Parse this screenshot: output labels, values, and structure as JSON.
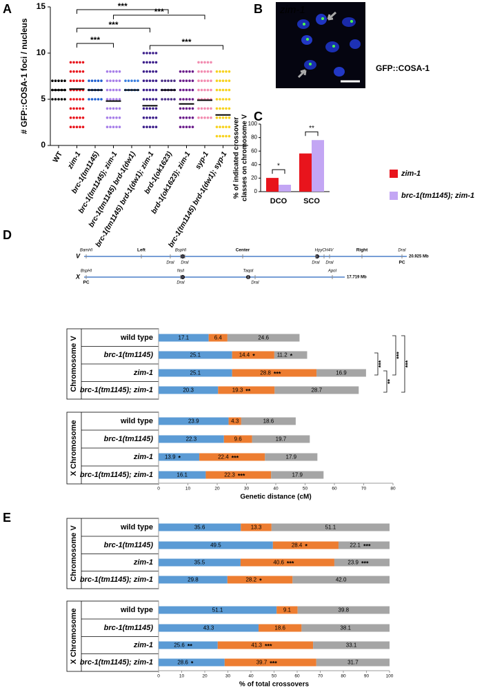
{
  "panels": [
    "A",
    "B",
    "C",
    "D",
    "E"
  ],
  "chart_data": [
    {
      "type": "dot",
      "ylabel": "# GFP::COSA-1 foci / nucleus",
      "categories": [
        "WT",
        "zim-1",
        "brc-1(tm1145)",
        "brc-1(tm1145); zim-1",
        "brc-1(tm1145) brd-1(dw1)",
        "brc-1(tm1145) brd-1(dw1); zim-1",
        "brd-1(ok1623)",
        "brd-1(ok1623); zim-1",
        "syp-1",
        "brc-1(tm1145) brd-1(dw1); syp-1"
      ],
      "values": [
        [
          5,
          6,
          7
        ],
        [
          2,
          3,
          4,
          5,
          6,
          7,
          8,
          9
        ],
        [
          5,
          6,
          7
        ],
        [
          2,
          3,
          4,
          5,
          6,
          7,
          8
        ],
        [
          6,
          7
        ],
        [
          2,
          3,
          4,
          5,
          6,
          7,
          8,
          9,
          10
        ],
        [
          5,
          6,
          7
        ],
        [
          2,
          3,
          4,
          5,
          6,
          7,
          8
        ],
        [
          3,
          4,
          5,
          6,
          7,
          8,
          9
        ],
        [
          1,
          2,
          3,
          4,
          5,
          6,
          7,
          8
        ]
      ],
      "means": [
        6,
        6.1,
        6,
        4.8,
        6,
        4.3,
        6,
        4.5,
        4.9,
        3.3
      ],
      "colors": [
        "#000000",
        "#e8141c",
        "#1f5fd0",
        "#a77ee8",
        "#3a7fe0",
        "#3b1d8a",
        "#4a2d86",
        "#6a1b8a",
        "#f28cb0",
        "#f7d21e"
      ],
      "ylim": [
        0,
        15
      ],
      "yticks": [
        0,
        5,
        10,
        15
      ],
      "brackets": [
        {
          "from": 1,
          "to": 6,
          "label": "***"
        },
        {
          "from": 3,
          "to": 8,
          "label": "***"
        },
        {
          "from": 1,
          "to": 5,
          "label": "***"
        },
        {
          "from": 1,
          "to": 3,
          "label": "***"
        },
        {
          "from": 5,
          "to": 9,
          "label": "***"
        }
      ]
    },
    {
      "type": "image",
      "title": "zim-1",
      "caption": "GFP::COSA-1"
    },
    {
      "type": "bar",
      "ylabel": [
        "% of indicated crossover",
        "classes on chromosome V"
      ],
      "categories": [
        "DCO",
        "SCO"
      ],
      "ylim": [
        0,
        100
      ],
      "yticks": [
        0,
        20,
        40,
        60,
        80,
        100
      ],
      "series": [
        {
          "name": "zim-1",
          "color": "#e8141c",
          "values": [
            20.3,
            56.5
          ]
        },
        {
          "name": "brc-1(tm1145); zim-1",
          "color": "#c3a6f4",
          "values": [
            10.2,
            76.3
          ]
        }
      ],
      "brackets": [
        {
          "index": 0,
          "label": "*"
        },
        {
          "index": 1,
          "label": "**"
        }
      ]
    },
    {
      "type": "map",
      "chromosomes": [
        {
          "name": "V",
          "size": "20.925 Mb",
          "labels": [
            "BamHI",
            "Left",
            "BspHI",
            "DraI",
            "DraI",
            "Center",
            "HpyCH4V",
            "DraI",
            "DraI",
            "Right",
            "DraI",
            "PC"
          ]
        },
        {
          "name": "X",
          "size": "17.719 Mb",
          "labels": [
            "BspHI",
            "PC",
            "NsiI",
            "DraI",
            "TaqαI",
            "DraI",
            "ApoI"
          ]
        }
      ]
    },
    {
      "type": "stacked_barh",
      "group": "Chromosome V",
      "categories": [
        "wild type",
        "brc-1(tm1145)",
        "zim-1",
        "brc-1(tm1145); zim-1"
      ],
      "series": [
        {
          "color": "#5b9bd5",
          "values": [
            17.1,
            25.1,
            25.1,
            20.3
          ]
        },
        {
          "color": "#ed7d31",
          "values": [
            6.4,
            14.4,
            28.8,
            19.3
          ]
        },
        {
          "color": "#a5a5a5",
          "values": [
            24.6,
            11.2,
            16.9,
            28.7
          ]
        }
      ],
      "stars": [
        {
          "series": 1,
          "index": 1,
          "label": "*"
        },
        {
          "series": 1,
          "index": 2,
          "label": "***"
        },
        {
          "series": 1,
          "index": 3,
          "label": "**"
        },
        {
          "series": 2,
          "index": 1,
          "label": "*"
        }
      ],
      "brackets": [
        {
          "from": 1,
          "to": 2,
          "label": "***"
        },
        {
          "from": 2,
          "to": 3,
          "label": "**"
        },
        {
          "from": 0,
          "to": 2,
          "label": "***"
        },
        {
          "from": 0,
          "to": 3,
          "label": "***"
        }
      ]
    },
    {
      "type": "stacked_barh",
      "group": "X Chromosome",
      "categories": [
        "wild type",
        "brc-1(tm1145)",
        "zim-1",
        "brc-1(tm1145); zim-1"
      ],
      "series": [
        {
          "color": "#5b9bd5",
          "values": [
            23.9,
            22.3,
            13.9,
            16.1
          ]
        },
        {
          "color": "#ed7d31",
          "values": [
            4.3,
            9.6,
            22.4,
            22.3
          ]
        },
        {
          "color": "#a5a5a5",
          "values": [
            18.6,
            19.7,
            17.9,
            17.9
          ]
        }
      ],
      "stars": [
        {
          "series": 0,
          "index": 2,
          "label": "*"
        },
        {
          "series": 1,
          "index": 2,
          "label": "***"
        },
        {
          "series": 1,
          "index": 3,
          "label": "***"
        }
      ],
      "xlim": [
        0,
        80
      ],
      "xticks": [
        0,
        10,
        20,
        30,
        40,
        50,
        60,
        70,
        80
      ],
      "xlabel": "Genetic distance (cM)"
    },
    {
      "type": "stacked_barh",
      "group": "Chromosome V",
      "categories": [
        "wild type",
        "brc-1(tm1145)",
        "zim-1",
        "brc-1(tm1145); zim-1"
      ],
      "series": [
        {
          "color": "#5b9bd5",
          "values": [
            35.6,
            49.5,
            35.5,
            29.8
          ]
        },
        {
          "color": "#ed7d31",
          "values": [
            13.3,
            28.4,
            40.6,
            28.2
          ]
        },
        {
          "color": "#a5a5a5",
          "values": [
            51.1,
            22.1,
            23.9,
            42.0
          ],
          "value_labels": [
            "51.1",
            "22.1",
            "23.9",
            "42.0"
          ]
        }
      ],
      "stars": [
        {
          "series": 1,
          "index": 1,
          "label": "*"
        },
        {
          "series": 1,
          "index": 2,
          "label": "***"
        },
        {
          "series": 1,
          "index": 3,
          "label": "*"
        },
        {
          "series": 2,
          "index": 1,
          "label": "***"
        },
        {
          "series": 2,
          "index": 2,
          "label": "***"
        }
      ]
    },
    {
      "type": "stacked_barh",
      "group": "X Chromosome",
      "categories": [
        "wild type",
        "brc-1(tm1145)",
        "zim-1",
        "brc-1(tm1145); zim-1"
      ],
      "series": [
        {
          "color": "#5b9bd5",
          "values": [
            51.1,
            43.3,
            25.6,
            28.6
          ]
        },
        {
          "color": "#ed7d31",
          "values": [
            9.1,
            18.6,
            41.3,
            39.7
          ]
        },
        {
          "color": "#a5a5a5",
          "values": [
            39.8,
            38.1,
            33.1,
            31.7
          ]
        }
      ],
      "stars": [
        {
          "series": 0,
          "index": 2,
          "label": "**"
        },
        {
          "series": 0,
          "index": 3,
          "label": "*"
        },
        {
          "series": 1,
          "index": 2,
          "label": "***"
        },
        {
          "series": 1,
          "index": 3,
          "label": "***"
        }
      ],
      "xlim": [
        0,
        100
      ],
      "xticks": [
        0,
        10,
        20,
        30,
        40,
        50,
        60,
        70,
        80,
        90,
        100
      ],
      "xlabel": "% of total crossovers"
    }
  ]
}
